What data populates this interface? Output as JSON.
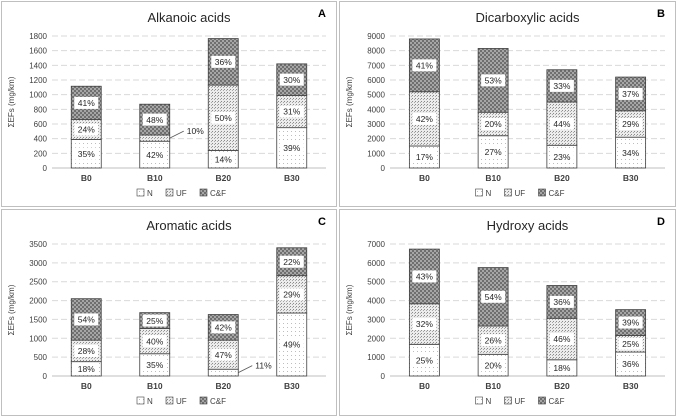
{
  "colors": {
    "n": "#ffffff",
    "uf": "#d9d9d9",
    "cf": "#a6a6a6",
    "stroke": "#404040",
    "grid": "#d9d9d9"
  },
  "patterns": {
    "n": "sparse-dots",
    "uf": "dense-dots",
    "cf": "checker"
  },
  "chart_data": [
    {
      "type": "bar",
      "stacked": true,
      "panel_letter": "A",
      "title": "Alkanoic acids",
      "ylabel": "ΣEFs (mg/km)",
      "xlabel": "",
      "ylim": [
        0,
        1800
      ],
      "yticks": [
        "0",
        "200",
        "400",
        "600",
        "800",
        "1000",
        "1200",
        "1400",
        "1600",
        "1800"
      ],
      "categories": [
        "B0",
        "B10",
        "B20",
        "B30"
      ],
      "legend_position": "bottom",
      "grid": true,
      "series": [
        {
          "name": "N",
          "values": [
            390,
            365,
            240,
            550
          ],
          "labels": [
            "35%",
            "42%",
            "14%",
            "39%"
          ]
        },
        {
          "name": "UF",
          "values": [
            270,
            85,
            890,
            440
          ],
          "labels": [
            "24%",
            "10%",
            "50%",
            "31%"
          ]
        },
        {
          "name": "C&F",
          "values": [
            455,
            420,
            635,
            430
          ],
          "labels": [
            "41%",
            "48%",
            "36%",
            "30%"
          ]
        }
      ]
    },
    {
      "type": "bar",
      "stacked": true,
      "panel_letter": "B",
      "title": "Dicarboxylic acids",
      "ylabel": "ΣEFs (mg/km)",
      "xlabel": "",
      "ylim": [
        0,
        9000
      ],
      "yticks": [
        "0",
        "1000",
        "2000",
        "3000",
        "4000",
        "5000",
        "6000",
        "7000",
        "8000",
        "9000"
      ],
      "categories": [
        "B0",
        "B10",
        "B20",
        "B30"
      ],
      "legend_position": "bottom",
      "grid": true,
      "series": [
        {
          "name": "N",
          "values": [
            1500,
            2200,
            1550,
            2100
          ],
          "labels": [
            "17%",
            "27%",
            "23%",
            "34%"
          ]
        },
        {
          "name": "UF",
          "values": [
            3700,
            1600,
            2950,
            1800
          ],
          "labels": [
            "42%",
            "20%",
            "44%",
            "29%"
          ]
        },
        {
          "name": "C&F",
          "values": [
            3600,
            4350,
            2200,
            2300
          ],
          "labels": [
            "41%",
            "53%",
            "33%",
            "37%"
          ]
        }
      ]
    },
    {
      "type": "bar",
      "stacked": true,
      "panel_letter": "C",
      "title": "Aromatic acids",
      "ylabel": "ΣEFs (mg/km)",
      "xlabel": "",
      "ylim": [
        0,
        3500
      ],
      "yticks": [
        "0",
        "500",
        "1000",
        "1500",
        "2000",
        "2500",
        "3000",
        "3500"
      ],
      "categories": [
        "B0",
        "B10",
        "B20",
        "B30"
      ],
      "legend_position": "bottom",
      "grid": true,
      "series": [
        {
          "name": "N",
          "values": [
            380,
            590,
            180,
            1670
          ],
          "labels": [
            "18%",
            "35%",
            "11%",
            "49%"
          ]
        },
        {
          "name": "UF",
          "values": [
            570,
            670,
            770,
            990
          ],
          "labels": [
            "28%",
            "40%",
            "47%",
            "29%"
          ]
        },
        {
          "name": "C&F",
          "values": [
            1100,
            420,
            680,
            740
          ],
          "labels": [
            "54%",
            "25%",
            "42%",
            "22%"
          ]
        }
      ]
    },
    {
      "type": "bar",
      "stacked": true,
      "panel_letter": "D",
      "title": "Hydroxy acids",
      "ylabel": "ΣEFs (mg/km)",
      "xlabel": "",
      "ylim": [
        0,
        7000
      ],
      "yticks": [
        "0",
        "1000",
        "2000",
        "3000",
        "4000",
        "5000",
        "6000",
        "7000"
      ],
      "categories": [
        "B0",
        "B10",
        "B20",
        "B30"
      ],
      "legend_position": "bottom",
      "grid": true,
      "series": [
        {
          "name": "N",
          "values": [
            1680,
            1150,
            860,
            1270
          ],
          "labels": [
            "25%",
            "20%",
            "18%",
            "36%"
          ]
        },
        {
          "name": "UF",
          "values": [
            2150,
            1500,
            2200,
            880
          ],
          "labels": [
            "32%",
            "26%",
            "46%",
            "25%"
          ]
        },
        {
          "name": "C&F",
          "values": [
            2900,
            3100,
            1740,
            1370
          ],
          "labels": [
            "43%",
            "54%",
            "36%",
            "39%"
          ]
        }
      ]
    }
  ]
}
